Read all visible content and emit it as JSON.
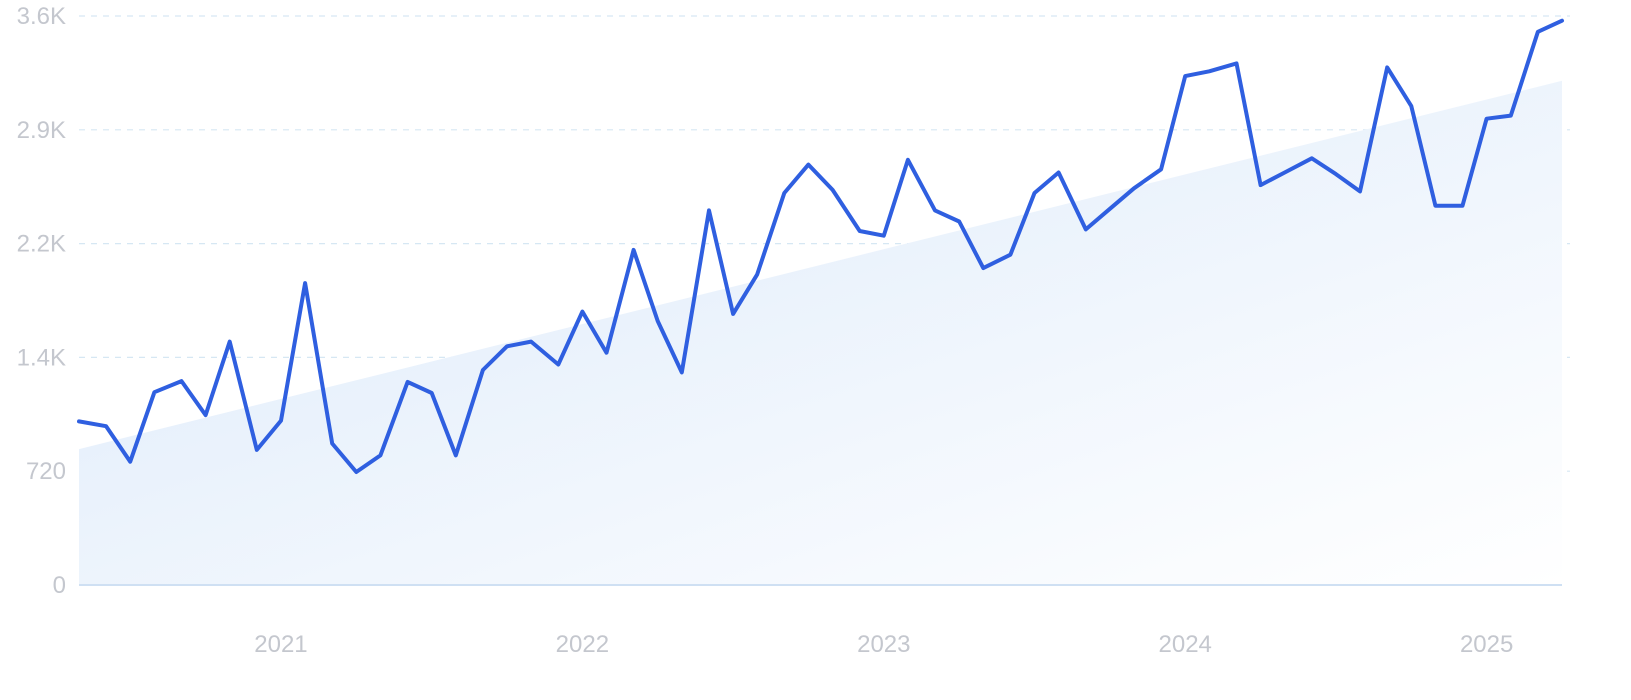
{
  "chart_data": {
    "type": "line",
    "title": "",
    "xlabel": "",
    "ylabel": "",
    "y_ticks": [
      "0",
      "720",
      "1.4K",
      "2.2K",
      "2.9K",
      "3.6K"
    ],
    "y_tick_values": [
      0,
      720,
      1440,
      2160,
      2880,
      3600
    ],
    "x_ticks": [
      "2021",
      "2022",
      "2023",
      "2024",
      "2025"
    ],
    "x_tick_values": [
      2021.0,
      2022.0,
      2023.0,
      2024.0,
      2025.0
    ],
    "ylim": [
      0,
      3600
    ],
    "xlim": [
      2020.33,
      2025.25
    ],
    "grid": true,
    "legend": "none",
    "colors": {
      "line": "#2f5fe0",
      "trend_fill_top": "#dbe9fa",
      "trend_fill_bottom": "#ffffff",
      "grid": "#d6e7f3",
      "tick_text": "#c4c7ce"
    },
    "series": [
      {
        "x": [
          2020.33,
          2020.42,
          2020.5,
          2020.58,
          2020.67,
          2020.75,
          2020.83,
          2020.92,
          2021.0,
          2021.08,
          2021.17,
          2021.25,
          2021.33,
          2021.42,
          2021.5,
          2021.58,
          2021.67,
          2021.75,
          2021.83,
          2021.92,
          2022.0,
          2022.08,
          2022.17,
          2022.25,
          2022.33,
          2022.42,
          2022.5,
          2022.58,
          2022.67,
          2022.75,
          2022.83,
          2022.92,
          2023.0,
          2023.08,
          2023.17,
          2023.25,
          2023.33,
          2023.42,
          2023.5,
          2023.58,
          2023.67,
          2023.75,
          2023.83,
          2023.92,
          2024.0,
          2024.08,
          2024.17,
          2024.25,
          2024.33,
          2024.42,
          2024.5,
          2024.58,
          2024.67,
          2024.75,
          2024.83,
          2024.92,
          2025.0,
          2025.08,
          2025.17,
          2025.25
        ],
        "values": [
          1035,
          1005,
          780,
          1220,
          1290,
          1075,
          1540,
          855,
          1040,
          1910,
          895,
          715,
          820,
          1285,
          1215,
          820,
          1360,
          1510,
          1540,
          1395,
          1730,
          1470,
          2120,
          1670,
          1345,
          2370,
          1715,
          1965,
          2480,
          2660,
          2500,
          2240,
          2210,
          2690,
          2370,
          2300,
          2005,
          2090,
          2480,
          2610,
          2250,
          2380,
          2510,
          2630,
          3220,
          3250,
          3300,
          2530,
          2610,
          2700,
          2600,
          2490,
          3275,
          3030,
          2400,
          2400,
          2950,
          2970,
          3500,
          3570
        ]
      }
    ],
    "trend": {
      "x": [
        2020.33,
        2025.25
      ],
      "values": [
        860,
        3190
      ]
    }
  }
}
